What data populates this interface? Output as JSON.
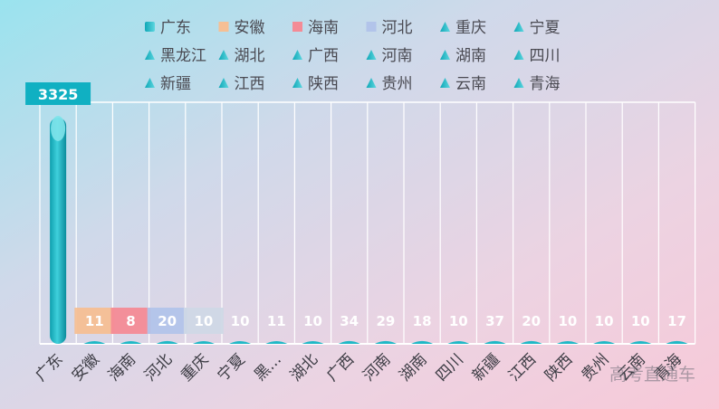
{
  "chart_data": {
    "type": "bar",
    "categories": [
      "广东",
      "安徽",
      "海南",
      "河北",
      "重庆",
      "宁夏",
      "黑龙江",
      "湖北",
      "广西",
      "河南",
      "湖南",
      "四川",
      "新疆",
      "江西",
      "陕西",
      "贵州",
      "云南",
      "青海"
    ],
    "values": [
      3325,
      11,
      8,
      20,
      10,
      10,
      11,
      10,
      34,
      29,
      18,
      10,
      37,
      20,
      10,
      10,
      10,
      17
    ],
    "tick_labels": [
      "广东",
      "安徽",
      "海南",
      "河北",
      "重庆",
      "宁夏",
      "黑...",
      "湖北",
      "广西",
      "河南",
      "湖南",
      "四川",
      "新疆",
      "江西",
      "陕西",
      "贵州",
      "云南",
      "青海"
    ],
    "legend_position": "top",
    "grid": true
  },
  "colors": {
    "primary": "#1fb8c6",
    "label_bg": "#10b0c2",
    "anhui": "#f6bf94",
    "hainan": "#f48b96",
    "hebei": "#b2c4ea",
    "chongqing": "#cfd8e6"
  },
  "watermark": "高考直通车"
}
